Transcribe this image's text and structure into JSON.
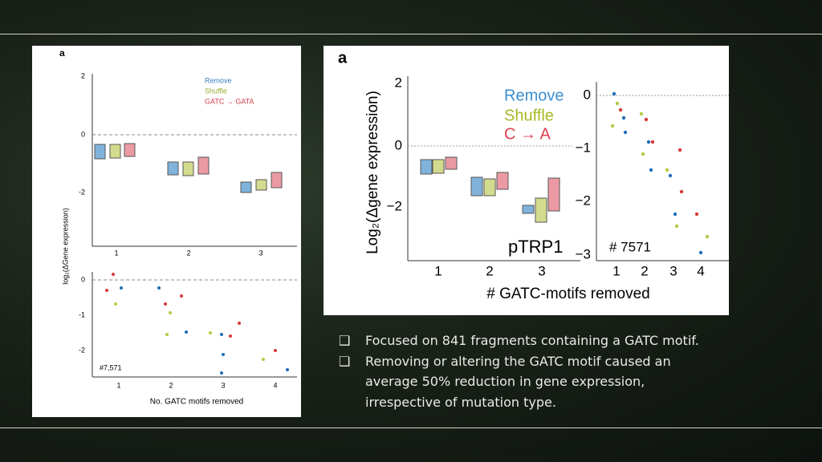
{
  "figure_left": {
    "panel": "a",
    "legend": [
      "Remove",
      "Shuffle",
      "GATC → GATA"
    ],
    "top_yticks": [
      "2",
      "0",
      "-2"
    ],
    "top_xticks": [
      "1",
      "2",
      "3"
    ],
    "bottom_yticks": [
      "0",
      "-1",
      "-2"
    ],
    "bottom_xticks": [
      "1",
      "2",
      "3",
      "4"
    ],
    "y_axis_label": "log₂(ΔGene expression)",
    "x_axis_label": "No. GATC motifs removed",
    "annotation": "#7,571"
  },
  "figure_right": {
    "panel": "a",
    "legend": [
      "Remove",
      "Shuffle",
      "C → A"
    ],
    "left_yticks": [
      "2",
      "0",
      "−2"
    ],
    "left_xticks": [
      "1",
      "2",
      "3"
    ],
    "right_yticks": [
      "0",
      "−1",
      "−2",
      "−3"
    ],
    "right_xticks": [
      "1",
      "2",
      "3",
      "4"
    ],
    "y_axis_label": "Log₂(Δgene expression)",
    "x_axis_label": "# GATC-motifs removed",
    "construct": "pTRP1",
    "annotation": "# 7571"
  },
  "bullets": [
    "Focused on 841 fragments containing a GATC motif.",
    "Removing or altering the GATC motif caused an average 50% reduction in gene expression, irrespective of mutation type."
  ]
}
